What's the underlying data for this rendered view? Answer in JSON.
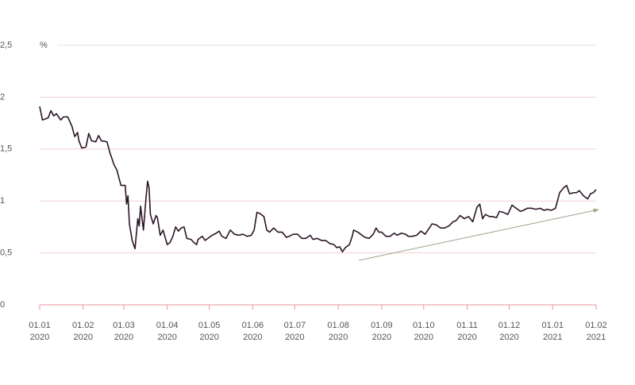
{
  "chart_data": {
    "type": "line",
    "y_label": "%",
    "xlim": [
      "2020-01-01",
      "2021-02-01"
    ],
    "xticks": [
      {
        "value": "2020-01-01",
        "label": [
          "01.01",
          "2020"
        ]
      },
      {
        "value": "2020-02-01",
        "label": [
          "01.02",
          "2020"
        ]
      },
      {
        "value": "2020-03-01",
        "label": [
          "01.03",
          "2020"
        ]
      },
      {
        "value": "2020-04-01",
        "label": [
          "01.04",
          "2020"
        ]
      },
      {
        "value": "2020-05-01",
        "label": [
          "01.05",
          "2020"
        ]
      },
      {
        "value": "2020-06-01",
        "label": [
          "01.06",
          "2020"
        ]
      },
      {
        "value": "2020-07-01",
        "label": [
          "01.07",
          "2020"
        ]
      },
      {
        "value": "2020-08-01",
        "label": [
          "01.08",
          "2020"
        ]
      },
      {
        "value": "2020-09-01",
        "label": [
          "01.09",
          "2020"
        ]
      },
      {
        "value": "2020-10-01",
        "label": [
          "01.10",
          "2020"
        ]
      },
      {
        "value": "2020-11-01",
        "label": [
          "01.11",
          "2020"
        ]
      },
      {
        "value": "2020-12-01",
        "label": [
          "01.12",
          "2020"
        ]
      },
      {
        "value": "2021-01-01",
        "label": [
          "01.01",
          "2021"
        ]
      },
      {
        "value": "2021-02-01",
        "label": [
          "01.02",
          "2021"
        ]
      }
    ],
    "ylim": [
      0,
      2.5
    ],
    "yticks": [
      0,
      {
        "value": 0.5,
        "label": "0,5"
      },
      1,
      {
        "value": 1.5,
        "label": "1,5"
      },
      2,
      {
        "value": 2.5,
        "label": "2,5"
      }
    ],
    "grid": true,
    "series": [
      {
        "color": "#2b1526",
        "x": [
          "2020-01-01",
          "2020-01-03",
          "2020-01-07",
          "2020-01-09",
          "2020-01-11",
          "2020-01-13",
          "2020-01-16",
          "2020-01-18",
          "2020-01-21",
          "2020-01-24",
          "2020-01-26",
          "2020-01-28",
          "2020-01-29",
          "2020-01-31",
          "2020-02-03",
          "2020-02-05",
          "2020-02-07",
          "2020-02-10",
          "2020-02-12",
          "2020-02-14",
          "2020-02-18",
          "2020-02-20",
          "2020-02-23",
          "2020-02-25",
          "2020-02-28",
          "2020-03-02",
          "2020-03-03",
          "2020-03-04",
          "2020-03-05",
          "2020-03-07",
          "2020-03-09",
          "2020-03-11",
          "2020-03-12",
          "2020-03-13",
          "2020-03-15",
          "2020-03-17",
          "2020-03-18",
          "2020-03-19",
          "2020-03-20",
          "2020-03-22",
          "2020-03-24",
          "2020-03-25",
          "2020-03-27",
          "2020-03-29",
          "2020-04-01",
          "2020-04-03",
          "2020-04-05",
          "2020-04-07",
          "2020-04-09",
          "2020-04-11",
          "2020-04-13",
          "2020-04-15",
          "2020-04-18",
          "2020-04-20",
          "2020-04-22",
          "2020-04-23",
          "2020-04-26",
          "2020-04-28",
          "2020-05-01",
          "2020-05-03",
          "2020-05-06",
          "2020-05-08",
          "2020-05-10",
          "2020-05-13",
          "2020-05-16",
          "2020-05-19",
          "2020-05-22",
          "2020-05-25",
          "2020-05-28",
          "2020-05-31",
          "2020-06-02",
          "2020-06-04",
          "2020-06-06",
          "2020-06-09",
          "2020-06-11",
          "2020-06-13",
          "2020-06-16",
          "2020-06-19",
          "2020-06-22",
          "2020-06-25",
          "2020-06-27",
          "2020-06-30",
          "2020-07-03",
          "2020-07-06",
          "2020-07-09",
          "2020-07-12",
          "2020-07-14",
          "2020-07-17",
          "2020-07-20",
          "2020-07-23",
          "2020-07-26",
          "2020-07-29",
          "2020-07-31",
          "2020-08-02",
          "2020-08-04",
          "2020-08-06",
          "2020-08-09",
          "2020-08-11",
          "2020-08-12",
          "2020-08-15",
          "2020-08-17",
          "2020-08-20",
          "2020-08-23",
          "2020-08-26",
          "2020-08-28",
          "2020-08-30",
          "2020-09-01",
          "2020-09-04",
          "2020-09-07",
          "2020-09-10",
          "2020-09-12",
          "2020-09-15",
          "2020-09-18",
          "2020-09-20",
          "2020-09-23",
          "2020-09-26",
          "2020-09-29",
          "2020-10-02",
          "2020-10-05",
          "2020-10-07",
          "2020-10-10",
          "2020-10-13",
          "2020-10-16",
          "2020-10-19",
          "2020-10-22",
          "2020-10-24",
          "2020-10-27",
          "2020-10-30",
          "2020-11-02",
          "2020-11-05",
          "2020-11-08",
          "2020-11-10",
          "2020-11-12",
          "2020-11-14",
          "2020-11-17",
          "2020-11-19",
          "2020-11-22",
          "2020-11-24",
          "2020-11-27",
          "2020-11-30",
          "2020-12-03",
          "2020-12-06",
          "2020-12-09",
          "2020-12-11",
          "2020-12-14",
          "2020-12-17",
          "2020-12-20",
          "2020-12-23",
          "2020-12-26",
          "2020-12-28",
          "2020-12-31",
          "2021-01-03",
          "2021-01-06",
          "2021-01-09",
          "2021-01-11",
          "2021-01-13",
          "2021-01-16",
          "2021-01-18",
          "2021-01-20",
          "2021-01-23",
          "2021-01-26",
          "2021-01-28",
          "2021-01-30",
          "2021-02-01"
        ],
        "values": [
          1.91,
          1.78,
          1.8,
          1.87,
          1.82,
          1.84,
          1.78,
          1.81,
          1.81,
          1.72,
          1.62,
          1.66,
          1.58,
          1.51,
          1.52,
          1.65,
          1.58,
          1.57,
          1.63,
          1.58,
          1.57,
          1.47,
          1.35,
          1.3,
          1.15,
          1.15,
          0.97,
          1.05,
          0.78,
          0.62,
          0.54,
          0.83,
          0.76,
          0.95,
          0.72,
          1.05,
          1.19,
          1.13,
          0.87,
          0.78,
          0.86,
          0.84,
          0.67,
          0.72,
          0.58,
          0.6,
          0.66,
          0.75,
          0.71,
          0.74,
          0.75,
          0.64,
          0.63,
          0.6,
          0.58,
          0.63,
          0.66,
          0.62,
          0.65,
          0.67,
          0.69,
          0.71,
          0.66,
          0.64,
          0.72,
          0.68,
          0.67,
          0.68,
          0.66,
          0.67,
          0.72,
          0.89,
          0.88,
          0.85,
          0.72,
          0.7,
          0.74,
          0.7,
          0.7,
          0.65,
          0.66,
          0.68,
          0.68,
          0.64,
          0.64,
          0.67,
          0.63,
          0.64,
          0.62,
          0.62,
          0.59,
          0.58,
          0.55,
          0.56,
          0.51,
          0.55,
          0.58,
          0.66,
          0.72,
          0.7,
          0.68,
          0.65,
          0.64,
          0.68,
          0.74,
          0.7,
          0.7,
          0.66,
          0.66,
          0.69,
          0.67,
          0.69,
          0.68,
          0.66,
          0.66,
          0.67,
          0.71,
          0.68,
          0.74,
          0.78,
          0.77,
          0.74,
          0.74,
          0.76,
          0.8,
          0.81,
          0.86,
          0.83,
          0.85,
          0.8,
          0.94,
          0.97,
          0.83,
          0.87,
          0.85,
          0.85,
          0.84,
          0.9,
          0.89,
          0.87,
          0.96,
          0.93,
          0.9,
          0.91,
          0.93,
          0.93,
          0.92,
          0.93,
          0.91,
          0.92,
          0.91,
          0.93,
          1.08,
          1.13,
          1.15,
          1.07,
          1.08,
          1.08,
          1.1,
          1.05,
          1.02,
          1.07,
          1.08,
          1.11
        ]
      }
    ]
  }
}
